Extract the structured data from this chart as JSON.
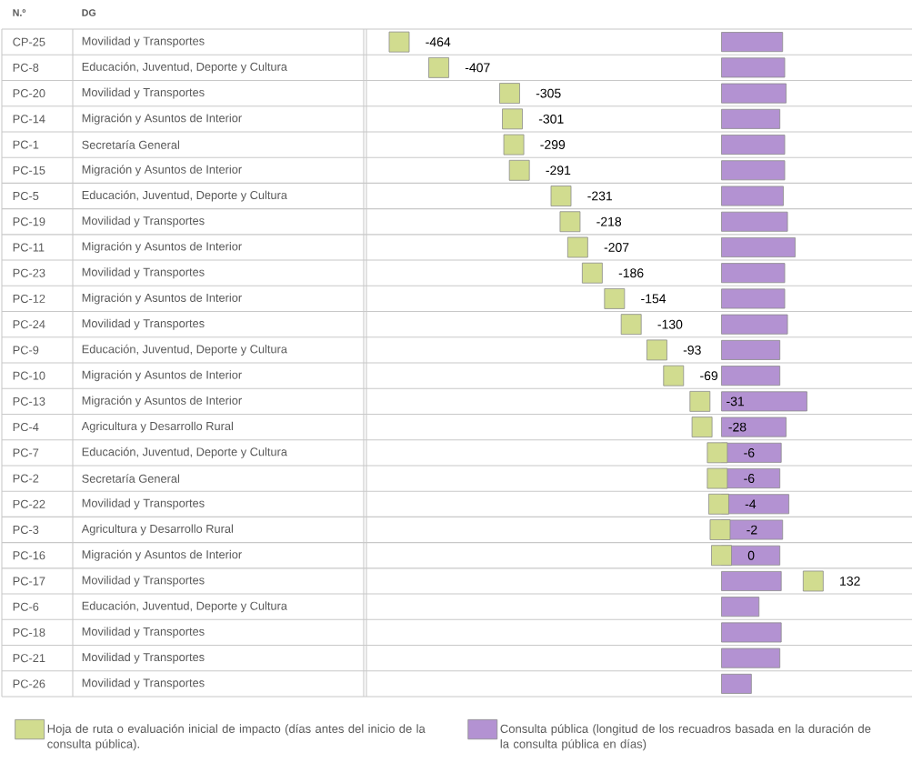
{
  "chart_data": {
    "type": "bar",
    "orientation": "horizontal",
    "ylabel": "N.º",
    "categories": [
      "CP-25",
      "PC-8",
      "PC-20",
      "PC-14",
      "PC-1",
      "PC-15",
      "PC-5",
      "PC-19",
      "PC-11",
      "PC-23",
      "PC-12",
      "PC-24",
      "PC-9",
      "PC-10",
      "PC-13",
      "PC-4",
      "PC-7",
      "PC-2",
      "PC-22",
      "PC-3",
      "PC-16",
      "PC-17",
      "PC-6",
      "PC-18",
      "PC-21",
      "PC-26"
    ],
    "annotations": [
      "DG",
      "Movilidad y Transportes",
      "Educación, Juventud, Deporte y Cultura",
      "Movilidad y Transportes",
      "Migración y Asuntos de Interior",
      "Secretaría General",
      "Migración y Asuntos de Interior",
      "Educación, Juventud, Deporte y Cultura",
      "Movilidad y Transportes",
      "Migración y Asuntos de Interior",
      "Movilidad y Transportes",
      "Migración y Asuntos de Interior",
      "Movilidad y Transportes",
      "Educación, Juventud, Deporte y Cultura",
      "Migración y Asuntos de Interior",
      "Migración y Asuntos de Interior",
      "Agricultura y Desarrollo Rural",
      "Educación, Juventud, Deporte y Cultura",
      "Secretaría General",
      "Movilidad y Transportes",
      "Agricultura y Desarrollo Rural",
      "Migración y Asuntos de Interior",
      "Movilidad y Transportes",
      "Educación, Juventud, Deporte y Cultura",
      "Movilidad y Transportes",
      "Movilidad y Transportes",
      "Movilidad y Transportes"
    ],
    "series": [
      {
        "name": "Consulta pública (longitud de los recuadros basada en la duración de la consulta pública en días)",
        "color": "#b392d2",
        "values": [
          88,
          91,
          93,
          84,
          91,
          91,
          89,
          95,
          106,
          91,
          91,
          95,
          84,
          84,
          123,
          93,
          86,
          84,
          97,
          88,
          84,
          86,
          54,
          86,
          84,
          43
        ]
      },
      {
        "name": "Hoja de ruta o evaluación inicial de impacto (días antes del inicio de la consulta pública).",
        "type": "scatter",
        "color": "#d1dc8f",
        "values": [
          -464,
          -407,
          -305,
          -301,
          -299,
          -291,
          -231,
          -218,
          -207,
          -186,
          -154,
          -130,
          -93,
          -69,
          -31,
          -28,
          -6,
          -6,
          -4,
          -2,
          0,
          132,
          null,
          null,
          null,
          null
        ],
        "value_labels": [
          "-464",
          "-407",
          "-305",
          "-301",
          "-299",
          "-291",
          "-231",
          "-218",
          "-207",
          "-186",
          "-154",
          "-130",
          "-93",
          "-69",
          "-31",
          "-28",
          "-6",
          "-6",
          "-4",
          "-2",
          "0",
          "132",
          null,
          null,
          null,
          null
        ]
      }
    ],
    "marker": "square",
    "legend": "bottom",
    "tick_labels": "y"
  }
}
